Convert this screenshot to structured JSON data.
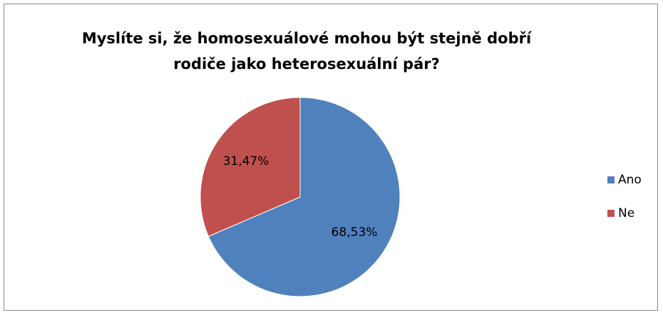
{
  "chart_data": {
    "type": "pie",
    "title": "Myslíte si, že homosexuálové mohou být stejně dobří\nrodiče jako heterosexuální pár?",
    "categories": [
      "Ano",
      "Ne"
    ],
    "values": [
      68.53,
      31.47
    ],
    "value_labels": [
      "68,53%",
      "31,47%"
    ],
    "colors": [
      "#4f81bd",
      "#c0504d"
    ],
    "legend": "right"
  }
}
